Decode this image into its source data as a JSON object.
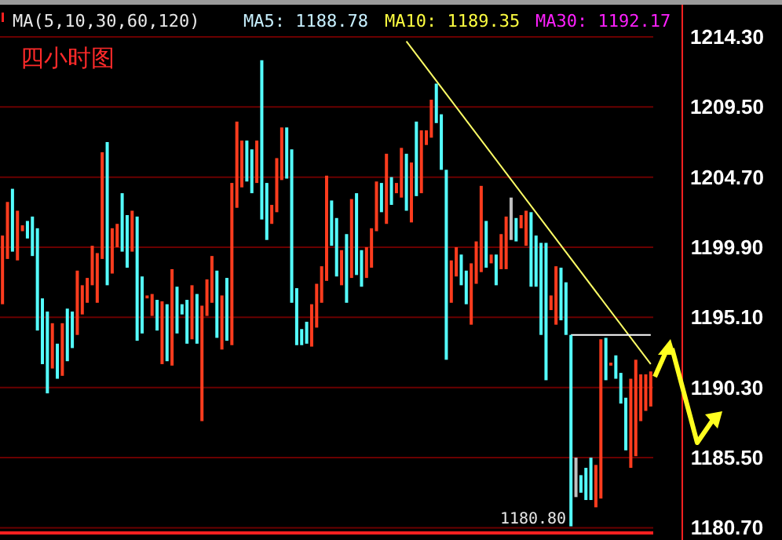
{
  "chart_data": {
    "type": "candlestick",
    "title": "四小时图",
    "annotations": [
      "MA(5,10,30,60,120)",
      "MA5: 1188.78",
      "MA10: 1189.35",
      "MA30: 1192.17",
      "1180.80"
    ],
    "ylim": [
      1180.4,
      1216.5
    ],
    "yticks": [
      {
        "value": 1214.3,
        "label": "1214.30"
      },
      {
        "value": 1209.5,
        "label": "1209.50"
      },
      {
        "value": 1204.7,
        "label": "1204.70"
      },
      {
        "value": 1199.9,
        "label": "1199.90"
      },
      {
        "value": 1195.1,
        "label": "1195.10"
      },
      {
        "value": 1190.3,
        "label": "1190.30"
      },
      {
        "value": 1185.5,
        "label": "1185.50"
      },
      {
        "value": 1180.7,
        "label": "1180.70"
      }
    ],
    "tick_labels": "y",
    "grid": "y",
    "series": [
      {
        "type": "line",
        "color": "#ffff66",
        "values": [
          null,
          null,
          null,
          null,
          null,
          null,
          null,
          null,
          null,
          null,
          null,
          null,
          null,
          null,
          null,
          null,
          null,
          null,
          null,
          null,
          null,
          null,
          null,
          null,
          null,
          null,
          null,
          null,
          null,
          null,
          null,
          null,
          null,
          null,
          null,
          null,
          null,
          null,
          null,
          null,
          null,
          null,
          null,
          null,
          null,
          null,
          null,
          null,
          null,
          null,
          null,
          null,
          null,
          null,
          null,
          null,
          null,
          null,
          null,
          null,
          null,
          null,
          null,
          null,
          null,
          null,
          null,
          null,
          null,
          null,
          null,
          null,
          null,
          null,
          null,
          null,
          null,
          null,
          null,
          null,
          null,
          1214.0,
          null,
          null,
          null,
          null,
          null,
          null,
          null,
          null,
          null,
          null,
          null,
          null,
          null,
          null,
          null,
          null,
          null,
          null,
          null,
          null,
          null,
          null,
          null,
          null,
          null,
          null,
          null,
          null,
          null,
          null,
          null,
          null,
          null,
          null,
          null,
          null,
          null,
          null,
          null,
          null,
          null,
          null,
          null,
          null,
          null,
          null,
          null,
          null,
          1191.9
        ]
      },
      {
        "type": "line",
        "color": "#ffffff",
        "values": [
          null,
          null,
          null,
          null,
          null,
          null,
          null,
          null,
          null,
          null,
          null,
          null,
          null,
          null,
          null,
          null,
          null,
          null,
          null,
          null,
          null,
          null,
          null,
          null,
          null,
          null,
          null,
          null,
          null,
          null,
          null,
          null,
          null,
          null,
          null,
          null,
          null,
          null,
          null,
          null,
          null,
          null,
          null,
          null,
          null,
          null,
          null,
          null,
          null,
          null,
          null,
          null,
          null,
          null,
          null,
          null,
          null,
          null,
          null,
          null,
          null,
          null,
          null,
          null,
          null,
          null,
          null,
          null,
          null,
          null,
          null,
          null,
          null,
          null,
          null,
          null,
          null,
          null,
          null,
          null,
          null,
          null,
          null,
          null,
          null,
          null,
          null,
          null,
          null,
          null,
          null,
          null,
          null,
          null,
          null,
          null,
          null,
          null,
          null,
          null,
          null,
          null,
          null,
          null,
          null,
          null,
          null,
          null,
          null,
          null,
          null,
          null,
          null,
          null,
          1193.9,
          null,
          null,
          null,
          null,
          null,
          null,
          null,
          null,
          null,
          null,
          null,
          null,
          null,
          null,
          null,
          1193.9
        ]
      }
    ],
    "categories": [
      null,
      null,
      null,
      null,
      null,
      null,
      null,
      null,
      null,
      null,
      null,
      null,
      null,
      null,
      null,
      null,
      null,
      null,
      null,
      null,
      null,
      null,
      null,
      null,
      null,
      null,
      null,
      null,
      null,
      null,
      null,
      null,
      null,
      null,
      null,
      null,
      null,
      null,
      null,
      null,
      null,
      null,
      null,
      null,
      null,
      null,
      null,
      null,
      null,
      null,
      null,
      null,
      null,
      null,
      null,
      null,
      null,
      null,
      null,
      null,
      null,
      null,
      null,
      null,
      null,
      null,
      null,
      null,
      null,
      null,
      null,
      null,
      null,
      null,
      null,
      null,
      null,
      null,
      null,
      null,
      null,
      null,
      null,
      null,
      null,
      null,
      null,
      null,
      null,
      null,
      null,
      null,
      null,
      null,
      null,
      null,
      null,
      null,
      null,
      null,
      null,
      null,
      null,
      null,
      null,
      null,
      null,
      null,
      null,
      null,
      null,
      null,
      null,
      null,
      null,
      null,
      null,
      null,
      null,
      null,
      null,
      null,
      null,
      null,
      null,
      null,
      null,
      null,
      null,
      null,
      null
    ],
    "ohlc": [
      [
        1196.0,
        1200.7,
        1196.0,
        1200.7
      ],
      [
        1199.1,
        1203.0,
        1199.1,
        1203.0
      ],
      [
        1203.9,
        1203.9,
        1199.6,
        1199.6
      ],
      [
        1199.0,
        1202.4,
        1199.0,
        1202.4
      ],
      [
        1201.0,
        1201.4,
        1201.0,
        1201.4
      ],
      [
        1201.7,
        1201.7,
        1200.5,
        1200.5
      ],
      [
        1202.0,
        1202.0,
        1199.3,
        1199.3
      ],
      [
        1201.2,
        1201.2,
        1194.2,
        1194.2
      ],
      [
        1196.4,
        1196.4,
        1191.9,
        1191.9
      ],
      [
        1195.5,
        1195.5,
        1189.9,
        1189.9
      ],
      [
        1191.6,
        1194.7,
        1191.6,
        1194.7
      ],
      [
        1193.3,
        1193.3,
        1190.9,
        1190.9
      ],
      [
        1191.1,
        1194.7,
        1191.1,
        1194.7
      ],
      [
        1195.7,
        1195.7,
        1192.1,
        1192.1
      ],
      [
        1195.5,
        1195.5,
        1193.0,
        1193.0
      ],
      [
        1193.9,
        1198.3,
        1193.9,
        1198.3
      ],
      [
        1195.3,
        1197.3,
        1195.3,
        1197.3
      ],
      [
        1196.1,
        1197.8,
        1196.1,
        1197.8
      ],
      [
        1197.3,
        1200.0,
        1197.3,
        1200.0
      ],
      [
        1196.1,
        1199.5,
        1196.1,
        1199.5
      ],
      [
        1199.1,
        1206.4,
        1199.1,
        1206.4
      ],
      [
        1207.1,
        1207.1,
        1197.3,
        1197.3
      ],
      [
        1198.1,
        1201.2,
        1198.1,
        1201.2
      ],
      [
        1199.9,
        1201.5,
        1199.9,
        1201.5
      ],
      [
        1203.6,
        1203.6,
        1199.6,
        1199.6
      ],
      [
        1202.1,
        1202.1,
        1198.5,
        1198.5
      ],
      [
        1199.6,
        1202.4,
        1199.6,
        1202.4
      ],
      [
        1202.0,
        1202.0,
        1193.5,
        1193.5
      ],
      [
        1197.9,
        1197.9,
        1194.0,
        1194.0
      ],
      [
        1196.4,
        1196.6,
        1196.4,
        1196.6
      ],
      [
        1195.2,
        1196.7,
        1195.2,
        1196.7
      ],
      [
        1196.3,
        1196.3,
        1194.2,
        1194.2
      ],
      [
        1191.9,
        1196.2,
        1191.9,
        1196.2
      ],
      [
        1196.0,
        1196.0,
        1192.1,
        1192.1
      ],
      [
        1191.8,
        1198.4,
        1191.8,
        1198.4
      ],
      [
        1197.2,
        1197.2,
        1194.0,
        1194.0
      ],
      [
        1196.0,
        1196.0,
        1195.3,
        1195.3
      ],
      [
        1196.3,
        1196.3,
        1193.3,
        1193.3
      ],
      [
        1193.6,
        1197.3,
        1193.6,
        1197.3
      ],
      [
        1196.7,
        1196.7,
        1193.3,
        1193.3
      ],
      [
        1188.0,
        1195.9,
        1188.0,
        1195.9
      ],
      [
        1195.2,
        1197.7,
        1195.2,
        1197.7
      ],
      [
        1196.1,
        1199.3,
        1196.1,
        1199.3
      ],
      [
        1198.3,
        1198.3,
        1193.7,
        1193.7
      ],
      [
        1192.9,
        1196.6,
        1192.9,
        1196.6
      ],
      [
        1197.8,
        1197.8,
        1193.5,
        1193.5
      ],
      [
        1193.2,
        1204.3,
        1193.2,
        1204.3
      ],
      [
        1202.6,
        1208.5,
        1202.6,
        1208.5
      ],
      [
        1204.0,
        1207.2,
        1204.0,
        1207.2
      ],
      [
        1207.2,
        1207.2,
        1204.4,
        1204.4
      ],
      [
        1206.6,
        1206.6,
        1203.6,
        1203.6
      ],
      [
        1204.3,
        1207.2,
        1204.3,
        1207.2
      ],
      [
        1212.7,
        1212.7,
        1201.8,
        1201.8
      ],
      [
        1204.3,
        1204.3,
        1200.4,
        1200.4
      ],
      [
        1201.5,
        1202.8,
        1201.5,
        1202.8
      ],
      [
        1202.3,
        1206.0,
        1202.3,
        1206.0
      ],
      [
        1204.5,
        1208.1,
        1204.5,
        1208.1
      ],
      [
        1208.1,
        1208.1,
        1204.6,
        1204.6
      ],
      [
        1206.6,
        1206.6,
        1196.1,
        1196.1
      ],
      [
        1197.1,
        1197.1,
        1193.2,
        1193.2
      ],
      [
        1194.3,
        1194.3,
        1193.2,
        1193.2
      ],
      [
        1194.8,
        1194.8,
        1193.3,
        1193.3
      ],
      [
        1193.1,
        1196.0,
        1193.1,
        1196.0
      ],
      [
        1194.4,
        1197.4,
        1194.4,
        1197.4
      ],
      [
        1196.1,
        1198.6,
        1196.1,
        1198.6
      ],
      [
        1197.6,
        1204.8,
        1197.6,
        1204.8
      ],
      [
        1203.1,
        1203.1,
        1200.0,
        1200.0
      ],
      [
        1201.9,
        1201.9,
        1197.9,
        1197.9
      ],
      [
        1197.3,
        1199.7,
        1197.3,
        1199.7
      ],
      [
        1200.8,
        1200.8,
        1196.1,
        1196.1
      ],
      [
        1197.8,
        1203.2,
        1197.8,
        1203.2
      ],
      [
        1203.6,
        1203.6,
        1198.0,
        1198.0
      ],
      [
        1199.7,
        1199.7,
        1197.2,
        1197.2
      ],
      [
        1197.8,
        1199.9,
        1197.8,
        1199.9
      ],
      [
        1198.5,
        1201.2,
        1198.5,
        1201.2
      ],
      [
        1201.0,
        1204.4,
        1201.0,
        1204.4
      ],
      [
        1204.3,
        1204.3,
        1202.3,
        1202.3
      ],
      [
        1201.5,
        1206.3,
        1201.5,
        1206.3
      ],
      [
        1204.7,
        1204.7,
        1202.8,
        1202.8
      ],
      [
        1203.6,
        1204.3,
        1203.6,
        1204.3
      ],
      [
        1203.3,
        1206.7,
        1203.3,
        1206.7
      ],
      [
        1206.3,
        1206.3,
        1202.4,
        1202.4
      ],
      [
        1201.6,
        1205.7,
        1201.6,
        1205.7
      ],
      [
        1208.5,
        1208.5,
        1203.4,
        1203.4
      ],
      [
        1203.6,
        1207.9,
        1203.6,
        1207.9
      ],
      [
        1206.9,
        1207.9,
        1206.9,
        1207.9
      ],
      [
        1207.4,
        1210.0,
        1207.4,
        1210.0
      ],
      [
        1211.1,
        1211.1,
        1208.4,
        1208.4
      ],
      [
        1209.0,
        1209.0,
        1205.2,
        1205.2
      ],
      [
        1205.2,
        1205.2,
        1192.2,
        1192.2
      ],
      [
        1196.1,
        1199.0,
        1196.1,
        1199.0
      ],
      [
        1197.9,
        1199.9,
        1197.9,
        1199.9
      ],
      [
        1199.4,
        1199.4,
        1197.3,
        1197.3
      ],
      [
        1198.3,
        1198.3,
        1196.0,
        1196.0
      ],
      [
        1194.6,
        1198.8,
        1194.6,
        1198.8
      ],
      [
        1197.4,
        1200.3,
        1197.4,
        1200.3
      ],
      [
        1198.2,
        1204.1,
        1198.2,
        1204.1
      ],
      [
        1201.7,
        1201.7,
        1198.5,
        1198.5
      ],
      [
        1198.8,
        1199.4,
        1198.8,
        1199.4
      ],
      [
        1199.4,
        1199.4,
        1197.3,
        1197.3
      ],
      [
        1198.4,
        1200.8,
        1198.4,
        1200.8
      ],
      [
        1198.4,
        1202.0,
        1198.4,
        1202.0
      ],
      [
        1203.3,
        1203.3,
        1200.4,
        1200.4
      ],
      [
        1201.9,
        1201.9,
        1200.3,
        1200.3
      ],
      [
        1201.2,
        1202.1,
        1201.2,
        1202.1
      ],
      [
        1200.0,
        1202.4,
        1200.0,
        1202.4
      ],
      [
        1202.3,
        1202.3,
        1197.2,
        1197.2
      ],
      [
        1200.7,
        1200.7,
        1197.2,
        1197.2
      ],
      [
        1200.2,
        1200.2,
        1193.9,
        1193.9
      ],
      [
        1200.2,
        1200.2,
        1190.8,
        1190.8
      ],
      [
        1195.6,
        1196.6,
        1195.6,
        1196.6
      ],
      [
        1194.6,
        1198.6,
        1194.6,
        1198.6
      ],
      [
        1198.5,
        1198.5,
        1194.9,
        1194.9
      ],
      [
        1197.5,
        1197.5,
        1193.9,
        1193.9
      ],
      [
        1193.9,
        1193.9,
        1180.8,
        1180.8
      ],
      [
        1185.5,
        1185.5,
        1182.8,
        1182.8
      ],
      [
        1184.3,
        1184.3,
        1183.1,
        1183.1
      ],
      [
        1184.8,
        1184.8,
        1182.6,
        1182.6
      ],
      [
        1185.5,
        1185.5,
        1182.6,
        1182.6
      ],
      [
        1182.1,
        1185.0,
        1182.1,
        1185.0
      ],
      [
        1182.7,
        1193.6,
        1182.7,
        1193.6
      ],
      [
        1193.7,
        1193.7,
        1190.8,
        1190.8
      ],
      [
        1191.8,
        1192.0,
        1191.8,
        1192.0
      ],
      [
        1192.5,
        1192.5,
        1190.9,
        1190.9
      ],
      [
        1191.3,
        1191.3,
        1189.2,
        1189.2
      ],
      [
        1189.6,
        1189.6,
        1186.0,
        1186.0
      ],
      [
        1184.8,
        1190.9,
        1184.8,
        1190.9
      ],
      [
        1185.6,
        1192.2,
        1185.6,
        1192.2
      ],
      [
        1188.0,
        1191.2,
        1188.0,
        1191.2
      ],
      [
        1188.7,
        1191.2,
        1188.7,
        1191.2
      ],
      [
        1189.0,
        1191.4,
        1189.0,
        1191.4
      ]
    ],
    "colors": [
      "#ff3c1e",
      "#ff3c1e",
      "#54ffff",
      "#ff3c1e",
      "#ff3c1e",
      "#54ffff",
      "#54ffff",
      "#54ffff",
      "#54ffff",
      "#54ffff",
      "#ff3c1e",
      "#54ffff",
      "#ff3c1e",
      "#54ffff",
      "#54ffff",
      "#ff3c1e",
      "#ff3c1e",
      "#ff3c1e",
      "#ff3c1e",
      "#ff3c1e",
      "#ff3c1e",
      "#54ffff",
      "#ff3c1e",
      "#ff3c1e",
      "#54ffff",
      "#54ffff",
      "#ff3c1e",
      "#54ffff",
      "#54ffff",
      "#ff3c1e",
      "#ff3c1e",
      "#54ffff",
      "#ff3c1e",
      "#54ffff",
      "#ff3c1e",
      "#54ffff",
      "#54ffff",
      "#54ffff",
      "#ff3c1e",
      "#54ffff",
      "#ff3c1e",
      "#ff3c1e",
      "#ff3c1e",
      "#54ffff",
      "#ff3c1e",
      "#54ffff",
      "#ff3c1e",
      "#ff3c1e",
      "#ff3c1e",
      "#54ffff",
      "#54ffff",
      "#ff3c1e",
      "#54ffff",
      "#54ffff",
      "#ff3c1e",
      "#ff3c1e",
      "#ff3c1e",
      "#54ffff",
      "#54ffff",
      "#54ffff",
      "#54ffff",
      "#54ffff",
      "#ff3c1e",
      "#ff3c1e",
      "#ff3c1e",
      "#ff3c1e",
      "#54ffff",
      "#54ffff",
      "#ff3c1e",
      "#54ffff",
      "#ff3c1e",
      "#54ffff",
      "#54ffff",
      "#ff3c1e",
      "#ff3c1e",
      "#ff3c1e",
      "#54ffff",
      "#ff3c1e",
      "#54ffff",
      "#ff3c1e",
      "#ff3c1e",
      "#54ffff",
      "#ff3c1e",
      "#54ffff",
      "#ff3c1e",
      "#ff3c1e",
      "#ff3c1e",
      "#54ffff",
      "#54ffff",
      "#54ffff",
      "#ff3c1e",
      "#ff3c1e",
      "#54ffff",
      "#54ffff",
      "#ff3c1e",
      "#ff3c1e",
      "#ff3c1e",
      "#54ffff",
      "#ff3c1e",
      "#54ffff",
      "#ff3c1e",
      "#ff3c1e",
      "#c0c0c0",
      "#54ffff",
      "#ff3c1e",
      "#ff3c1e",
      "#54ffff",
      "#54ffff",
      "#54ffff",
      "#54ffff",
      "#ff3c1e",
      "#ff3c1e",
      "#54ffff",
      "#54ffff",
      "#54ffff",
      "#c0c0c0",
      "#54ffff",
      "#54ffff",
      "#54ffff",
      "#ff3c1e",
      "#ff3c1e",
      "#54ffff",
      "#ff3c1e",
      "#54ffff",
      "#54ffff",
      "#54ffff",
      "#ff3c1e",
      "#ff3c1e",
      "#ff3c1e",
      "#ff3c1e",
      "#ff3c1e"
    ]
  }
}
